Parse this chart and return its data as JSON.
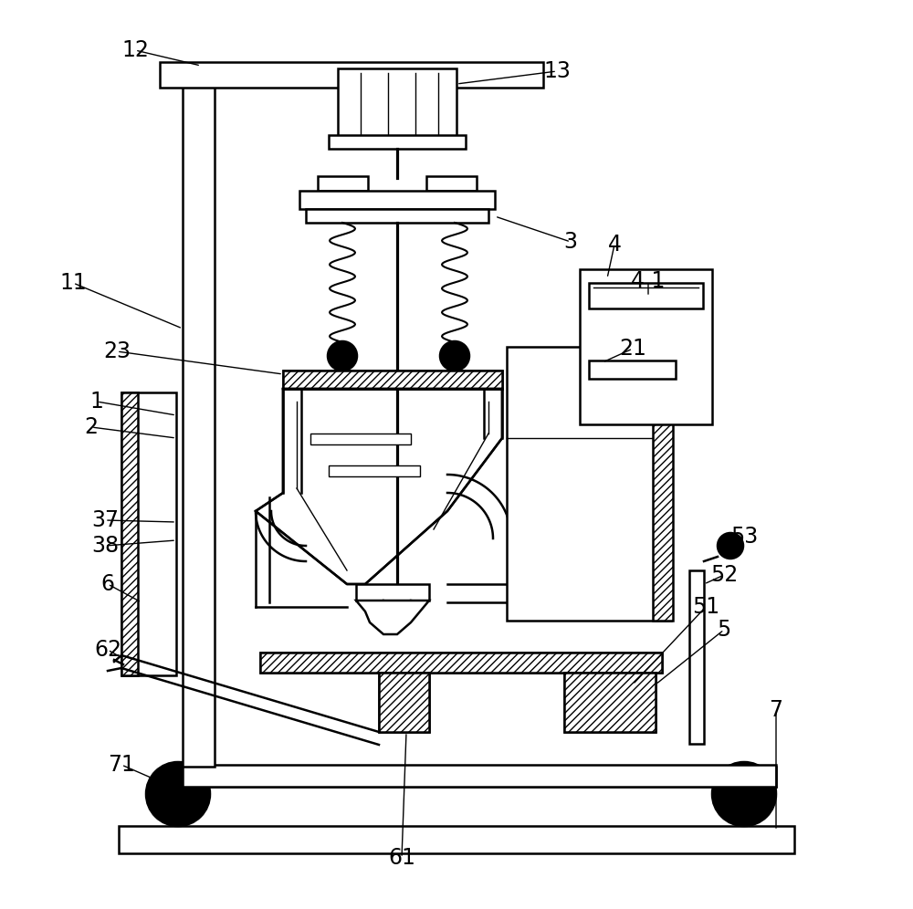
{
  "bg_color": "#ffffff",
  "lw": 1.8,
  "tlw": 1.0,
  "figsize": [
    10.0,
    9.96
  ],
  "dpi": 100
}
